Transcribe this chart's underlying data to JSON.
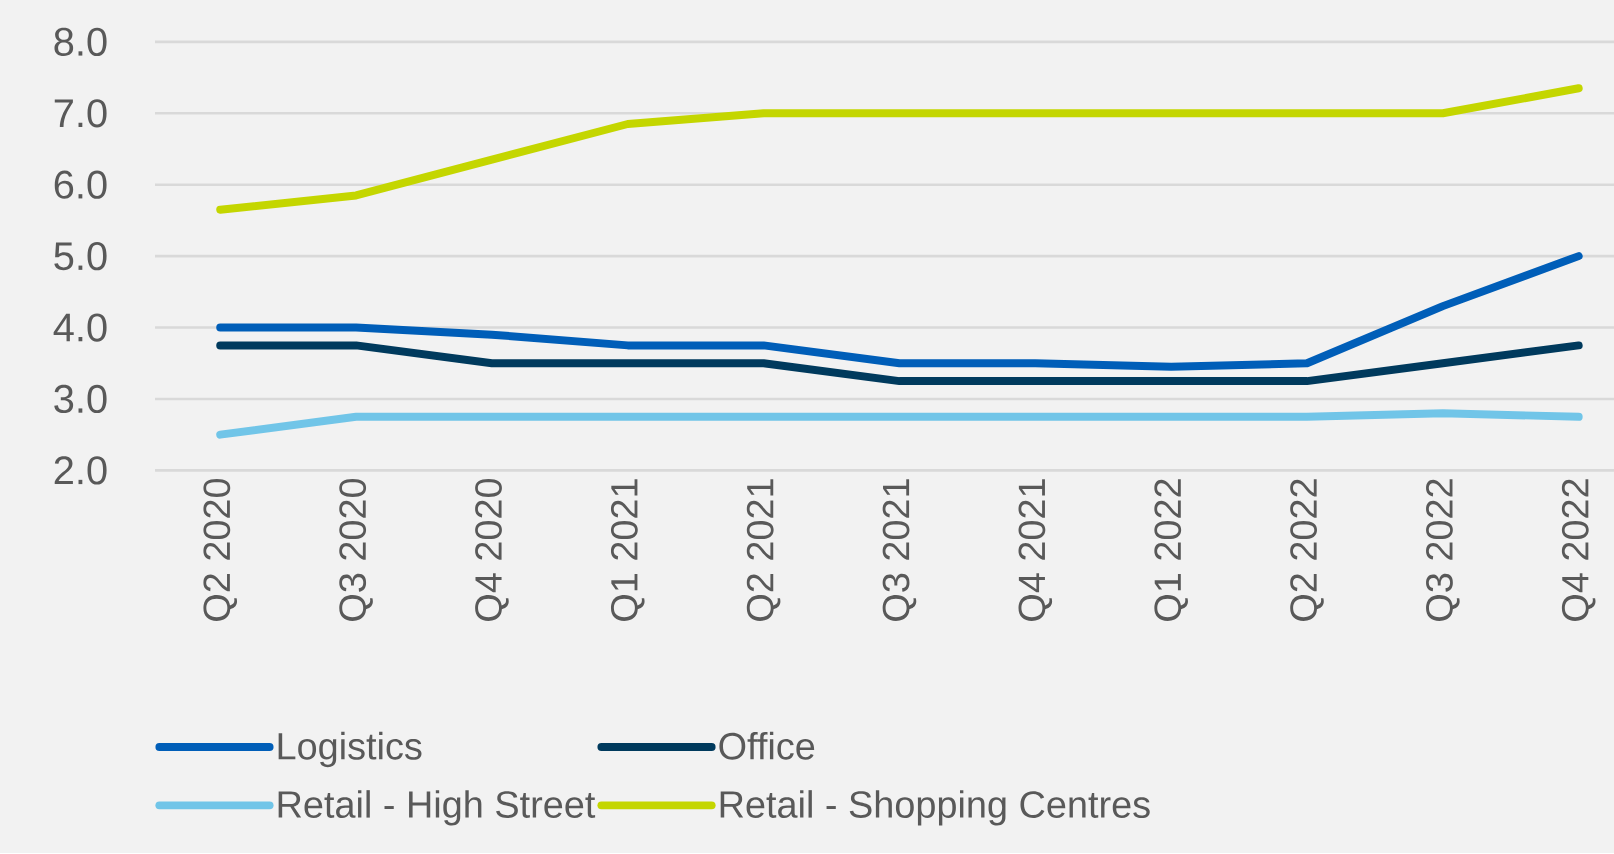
{
  "chart_data": {
    "type": "line",
    "categories": [
      "Q2 2020",
      "Q3 2020",
      "Q4 2020",
      "Q1 2021",
      "Q2 2021",
      "Q3 2021",
      "Q4 2021",
      "Q1 2022",
      "Q2 2022",
      "Q3 2022",
      "Q4 2022"
    ],
    "series": [
      {
        "name": "Logistics",
        "color": "#005eb8",
        "values": [
          4.0,
          4.0,
          3.9,
          3.75,
          3.75,
          3.5,
          3.5,
          3.45,
          3.5,
          4.3,
          5.0
        ]
      },
      {
        "name": "Office",
        "color": "#003a5d",
        "values": [
          3.75,
          3.75,
          3.5,
          3.5,
          3.5,
          3.25,
          3.25,
          3.25,
          3.25,
          3.5,
          3.75
        ]
      },
      {
        "name": "Retail - High Street",
        "color": "#71c5e8",
        "values": [
          2.5,
          2.75,
          2.75,
          2.75,
          2.75,
          2.75,
          2.75,
          2.75,
          2.75,
          2.8,
          2.75
        ]
      },
      {
        "name": "Retail - Shopping Centres",
        "color": "#c4d600",
        "values": [
          5.65,
          5.85,
          6.35,
          6.85,
          7.0,
          7.0,
          7.0,
          7.0,
          7.0,
          7.0,
          7.35
        ]
      }
    ],
    "ylim": [
      2,
      8
    ],
    "yticks": [
      {
        "value": 2,
        "label": "2.0"
      },
      {
        "value": 3,
        "label": "3.0"
      },
      {
        "value": 4,
        "label": "4.0"
      },
      {
        "value": 5,
        "label": "5.0"
      },
      {
        "value": 6,
        "label": "6.0"
      },
      {
        "value": 7,
        "label": "7.0"
      },
      {
        "value": 8,
        "label": "8.0"
      }
    ],
    "grid": "y",
    "legend": "bottom",
    "marker": "none",
    "line_style": "solid"
  }
}
